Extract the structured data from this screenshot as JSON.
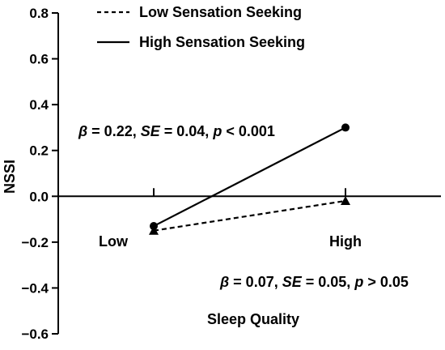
{
  "chart_data": {
    "type": "line",
    "title": "",
    "xlabel": "Sleep Quality",
    "ylabel": "NSSI",
    "categories": [
      "Low",
      "High"
    ],
    "ylim": [
      -0.6,
      0.8
    ],
    "yticks": [
      "0.8",
      "0.6",
      "0.4",
      "0.2",
      "0.0",
      "−0.2",
      "−0.4",
      "−0.6"
    ],
    "ytick_values": [
      0.8,
      0.6,
      0.4,
      0.2,
      0.0,
      -0.2,
      -0.4,
      -0.6
    ],
    "grid": false,
    "legend_position": "top",
    "series": [
      {
        "name": "Low Sensation Seeking",
        "values": [
          -0.15,
          -0.02
        ],
        "line_style": "dashed",
        "marker": "triangle",
        "color": "#000000"
      },
      {
        "name": "High Sensation Seeking",
        "values": [
          -0.13,
          0.3
        ],
        "line_style": "solid",
        "marker": "circle",
        "color": "#000000"
      }
    ],
    "annotations": {
      "high": {
        "beta": "β",
        "beta_val": " = 0.22, ",
        "se": "SE",
        "se_val": " = 0.04, ",
        "p": "p",
        "p_val": " < 0.001"
      },
      "low": {
        "beta": "β",
        "beta_val": " = 0.07, ",
        "se": "SE",
        "se_val": " = 0.05, ",
        "p": "p",
        "p_val": " > 0.05"
      }
    }
  }
}
